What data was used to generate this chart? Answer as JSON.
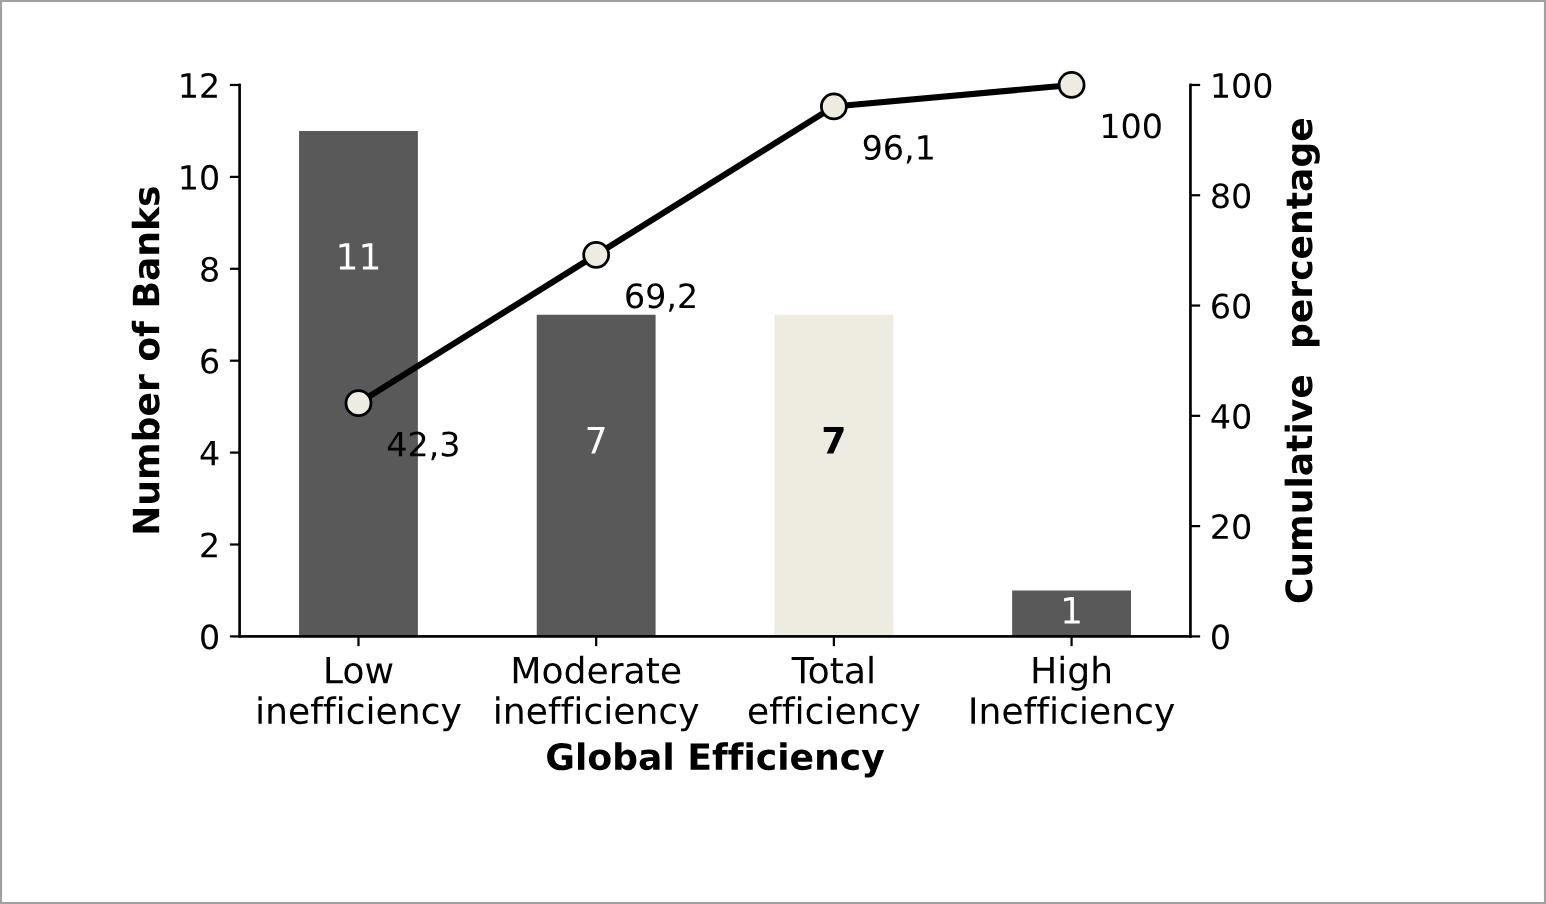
{
  "chart_data": {
    "type": "bar",
    "xlabel": "Global Efficiency",
    "ylabel": "Number of Banks",
    "y2label": "Cumulative  percentage",
    "categories": [
      "Low\ninefficiency",
      "Moderate\ninefficiency",
      "Total\nefficiency",
      "High\nInefficiency"
    ],
    "series": [
      {
        "values": [
          11,
          7,
          7,
          1
        ],
        "colors": [
          "#595959",
          "#595959",
          "#eeece1",
          "#595959"
        ],
        "value_labels": [
          "11",
          "7",
          "7",
          "1"
        ]
      },
      {
        "type": "line",
        "axis": "y2",
        "color": "#000000",
        "values": [
          42.3,
          69.2,
          96.1,
          100
        ],
        "value_labels": [
          "42,3",
          "69,2",
          "96,1",
          "100"
        ],
        "marker": "circle"
      }
    ],
    "ylim": [
      0,
      12
    ],
    "yticks": [
      0,
      2,
      4,
      6,
      8,
      10,
      12
    ],
    "y2lim": [
      0,
      100
    ],
    "y2ticks": [
      0,
      20,
      40,
      60,
      80,
      100
    ],
    "grid": false,
    "legend": false
  }
}
